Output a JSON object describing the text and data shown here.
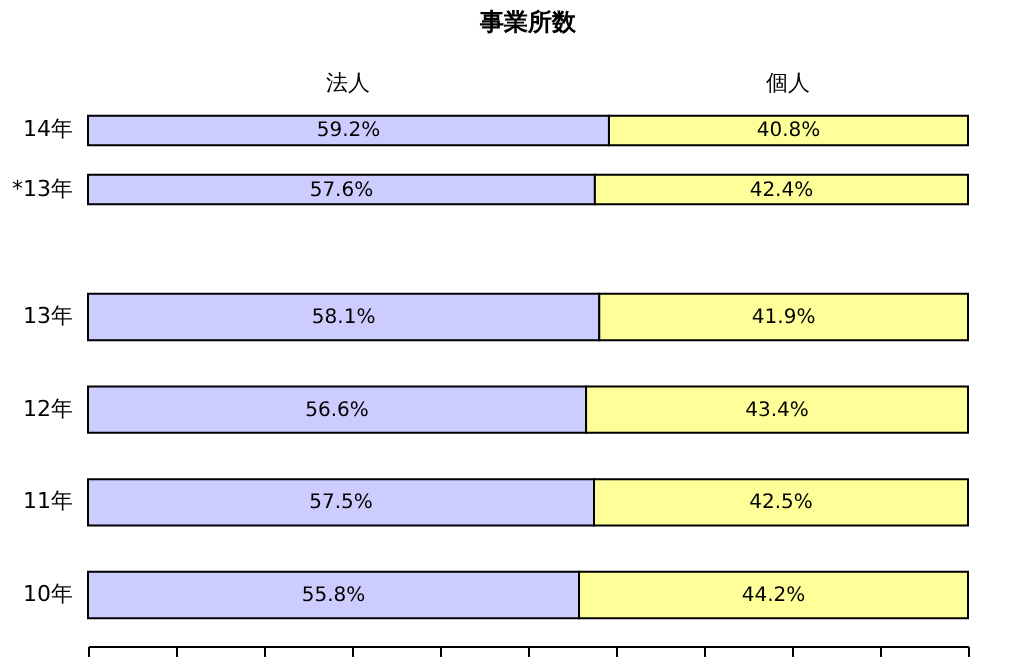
{
  "chart_data": [
    {
      "type": "bar",
      "orientation": "horizontal",
      "stacked": true,
      "title": "事業所数",
      "categories": [
        "14年",
        "*13年"
      ],
      "xlim": [
        0,
        100
      ],
      "tick_labels": "y",
      "legend": "top",
      "grid": false,
      "series": [
        {
          "name": "法人",
          "color": "#ccccff",
          "values": [
            59.2,
            57.6
          ],
          "value_labels": [
            "59.2%",
            "57.6%"
          ]
        },
        {
          "name": "個人",
          "color": "#ffff99",
          "values": [
            40.8,
            42.4
          ],
          "value_labels": [
            "40.8%",
            "42.4%"
          ]
        }
      ]
    },
    {
      "type": "bar",
      "orientation": "horizontal",
      "stacked": true,
      "categories": [
        "13年",
        "12年",
        "11年",
        "10年"
      ],
      "xlim": [
        0,
        100
      ],
      "xticks": [
        {
          "value": 0,
          "label": null
        },
        {
          "value": 10,
          "label": null
        },
        {
          "value": 20,
          "label": null
        },
        {
          "value": 30,
          "label": null
        },
        {
          "value": 40,
          "label": null
        },
        {
          "value": 50,
          "label": null
        },
        {
          "value": 60,
          "label": null
        },
        {
          "value": 70,
          "label": null
        },
        {
          "value": 80,
          "label": null
        },
        {
          "value": 90,
          "label": null
        },
        {
          "value": 100,
          "label": null
        }
      ],
      "tick_labels": "y",
      "grid": false,
      "series": [
        {
          "color": "#ccccff",
          "values": [
            58.1,
            56.6,
            57.5,
            55.8
          ],
          "value_labels": [
            "58.1%",
            "56.6%",
            "57.5%",
            "55.8%"
          ]
        },
        {
          "color": "#ffff99",
          "values": [
            41.9,
            43.4,
            42.5,
            44.2
          ],
          "value_labels": [
            "41.9%",
            "43.4%",
            "42.5%",
            "44.2%"
          ]
        }
      ]
    }
  ]
}
